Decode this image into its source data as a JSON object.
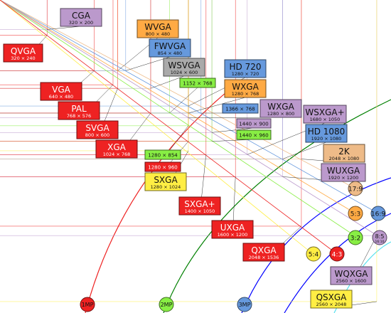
{
  "colors": {
    "red": "#ee2222",
    "orange": "#ffaa44",
    "blue": "#6699dd",
    "purple": "#bb99cc",
    "gray": "#aaaaaa",
    "green": "#88ee44",
    "yellow": "#ffee44",
    "tan": "#eebb88",
    "cyan": "#55e0ee"
  },
  "resolutions": [
    {
      "id": "cga",
      "name": "CGA",
      "size": "320 × 200",
      "color": "purple"
    },
    {
      "id": "qvga",
      "name": "QVGA",
      "size": "320 × 240",
      "color": "red"
    },
    {
      "id": "wvga",
      "name": "WVGA",
      "size": "800 × 480",
      "color": "orange"
    },
    {
      "id": "fwvga",
      "name": "FWVGA",
      "size": "854 × 480",
      "color": "blue"
    },
    {
      "id": "wsvga",
      "name": "WSVGA",
      "size": "1024 × 600",
      "color": "gray"
    },
    {
      "id": "hd720",
      "name": "HD 720",
      "size": "1280 × 720",
      "color": "blue"
    },
    {
      "id": "vga",
      "name": "VGA",
      "size": "640 × 480",
      "color": "red"
    },
    {
      "id": "r1152",
      "name": "",
      "size": "1152 × 768",
      "color": "green"
    },
    {
      "id": "wxga1",
      "name": "WXGA",
      "size": "1280 × 768",
      "color": "orange"
    },
    {
      "id": "pal",
      "name": "PAL",
      "size": "768 × 576",
      "color": "red"
    },
    {
      "id": "r1366",
      "name": "",
      "size": "1366 × 768",
      "color": "blue"
    },
    {
      "id": "wxga2",
      "name": "WXGA",
      "size": "1280 × 800",
      "color": "purple"
    },
    {
      "id": "wsxgap",
      "name": "WSXGA+",
      "size": "1680 × 1050",
      "color": "purple"
    },
    {
      "id": "r1440900",
      "name": "",
      "size": "1440 × 900",
      "color": "purple"
    },
    {
      "id": "svga",
      "name": "SVGA",
      "size": "800 × 600",
      "color": "red"
    },
    {
      "id": "hd1080",
      "name": "HD 1080",
      "size": "1920 × 1080",
      "color": "blue"
    },
    {
      "id": "r1440960",
      "name": "",
      "size": "1440 × 960",
      "color": "green"
    },
    {
      "id": "xga",
      "name": "XGA",
      "size": "1024 × 768",
      "color": "red"
    },
    {
      "id": "r1280854",
      "name": "",
      "size": "1280 × 854",
      "color": "green"
    },
    {
      "id": "k2",
      "name": "2K",
      "size": "2048 × 1080",
      "color": "tan"
    },
    {
      "id": "r1280960",
      "name": "",
      "size": "1280 × 960",
      "color": "red"
    },
    {
      "id": "wuxga",
      "name": "WUXGA",
      "size": "1920 × 1200",
      "color": "purple"
    },
    {
      "id": "sxga",
      "name": "SXGA",
      "size": "1280 × 1024",
      "color": "yellow"
    },
    {
      "id": "sxgap",
      "name": "SXGA+",
      "size": "1400 × 1050",
      "color": "red"
    },
    {
      "id": "uxga",
      "name": "UXGA",
      "size": "1600 × 1200",
      "color": "red"
    },
    {
      "id": "qxga",
      "name": "QXGA",
      "size": "2048 × 1536",
      "color": "red"
    },
    {
      "id": "wqxga",
      "name": "WQXGA",
      "size": "2560 × 1600",
      "color": "purple"
    },
    {
      "id": "qsxga",
      "name": "QSXGA",
      "size": "2560 × 2048",
      "color": "yellow"
    }
  ],
  "aspect_ratios": [
    {
      "id": "r17_9",
      "label": "17:9",
      "color": "tan"
    },
    {
      "id": "r16_9",
      "label": "16:9",
      "color": "blue"
    },
    {
      "id": "r5_3",
      "label": "5:3",
      "color": "orange"
    },
    {
      "id": "r3_2",
      "label": "3:2",
      "color": "green"
    },
    {
      "id": "r8_5",
      "label": "8:5",
      "color": "purple",
      "sub": "16:10"
    },
    {
      "id": "r5_4",
      "label": "5:4",
      "color": "yellow"
    },
    {
      "id": "r4_3",
      "label": "4:3",
      "color": "red"
    }
  ],
  "megapixels": [
    {
      "id": "mp1",
      "label": "1MP",
      "color": "red"
    },
    {
      "id": "mp2",
      "label": "2MP",
      "color": "green"
    },
    {
      "id": "mp3",
      "label": "3MP",
      "color": "blue"
    }
  ]
}
